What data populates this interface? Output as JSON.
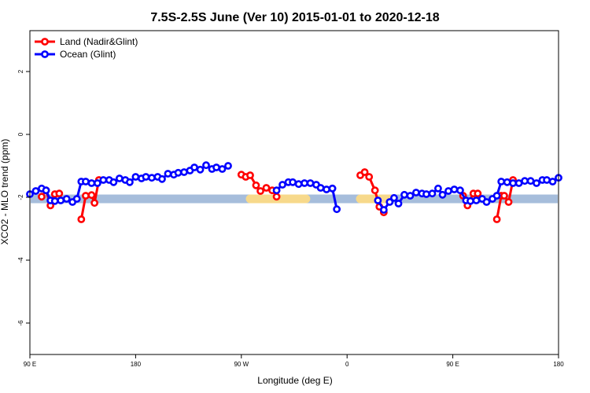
{
  "chart_data": {
    "type": "line",
    "title": "7.5S-2.5S June (Ver 10)   2015-01-01 to 2020-12-18",
    "xlabel": "Longitude (deg E)",
    "ylabel": "XCO2 - MLO trend (ppm)",
    "xlim": [
      90,
      450
    ],
    "ylim": [
      -7.0,
      3.3
    ],
    "x_ticks": [
      {
        "value": 90,
        "label": "90 E"
      },
      {
        "value": 162,
        "label": "180"
      },
      {
        "value": 234,
        "label": "90 W"
      },
      {
        "value": 306,
        "label": "0"
      },
      {
        "value": 378,
        "label": "90 E"
      },
      {
        "value": 450,
        "label": "180"
      }
    ],
    "y_ticks": [
      {
        "value": 2,
        "label": "2"
      },
      {
        "value": 0,
        "label": "0"
      },
      {
        "value": -2,
        "label": "-2"
      },
      {
        "value": -4,
        "label": "-4"
      },
      {
        "value": -6,
        "label": "-6"
      }
    ],
    "legend": {
      "position": "top-left"
    },
    "band": {
      "y": -2.05,
      "color": "#a6bddb",
      "land_color": "#f7d98b"
    },
    "land_bands": [
      [
        240,
        278
      ],
      [
        315,
        335
      ]
    ],
    "series": [
      {
        "name": "Land (Nadir&Glint)",
        "color": "#ff0000",
        "segments": [
          [
            [
              98,
              -1.98
            ],
            [
              101,
              -1.78
            ],
            [
              104,
              -2.26
            ],
            [
              107,
              -1.9
            ],
            [
              110,
              -1.88
            ]
          ],
          [
            [
              125,
              -2.7
            ],
            [
              128,
              -1.95
            ],
            [
              132,
              -1.93
            ],
            [
              134,
              -2.18
            ],
            [
              137,
              -1.45
            ]
          ],
          [
            [
              234,
              -1.28
            ],
            [
              237,
              -1.35
            ],
            [
              240,
              -1.3
            ],
            [
              244,
              -1.62
            ],
            [
              247,
              -1.8
            ],
            [
              251,
              -1.7
            ],
            [
              255,
              -1.78
            ],
            [
              258,
              -1.98
            ]
          ],
          [
            [
              315,
              -1.3
            ],
            [
              318,
              -1.2
            ],
            [
              321,
              -1.35
            ],
            [
              325,
              -1.78
            ],
            [
              328,
              -2.3
            ],
            [
              331,
              -2.48
            ]
          ],
          [
            [
              385,
              -1.95
            ],
            [
              388,
              -2.26
            ],
            [
              392,
              -1.88
            ],
            [
              395,
              -1.88
            ]
          ],
          [
            [
              408,
              -2.7
            ],
            [
              411,
              -1.95
            ],
            [
              413,
              -1.95
            ],
            [
              416,
              -2.15
            ],
            [
              419,
              -1.45
            ]
          ]
        ]
      },
      {
        "name": "Ocean (Glint)",
        "color": "#0000ff",
        "segments": [
          [
            [
              90,
              -1.9
            ],
            [
              94,
              -1.8
            ],
            [
              98,
              -1.72
            ],
            [
              101,
              -1.78
            ],
            [
              104,
              -2.1
            ],
            [
              107,
              -2.12
            ],
            [
              111,
              -2.1
            ],
            [
              115,
              -2.05
            ],
            [
              119,
              -2.15
            ],
            [
              122,
              -2.05
            ],
            [
              125,
              -1.5
            ],
            [
              128,
              -1.5
            ],
            [
              132,
              -1.55
            ],
            [
              136,
              -1.55
            ],
            [
              140,
              -1.45
            ],
            [
              144,
              -1.45
            ],
            [
              147,
              -1.52
            ],
            [
              151,
              -1.4
            ],
            [
              155,
              -1.45
            ],
            [
              158,
              -1.52
            ],
            [
              162,
              -1.35
            ],
            [
              166,
              -1.4
            ],
            [
              169,
              -1.35
            ],
            [
              173,
              -1.38
            ],
            [
              177,
              -1.35
            ],
            [
              180,
              -1.42
            ],
            [
              184,
              -1.25
            ],
            [
              188,
              -1.28
            ],
            [
              191,
              -1.22
            ],
            [
              195,
              -1.2
            ],
            [
              199,
              -1.15
            ],
            [
              202,
              -1.05
            ],
            [
              206,
              -1.12
            ],
            [
              210,
              -0.98
            ],
            [
              214,
              -1.1
            ],
            [
              217,
              -1.05
            ],
            [
              221,
              -1.1
            ],
            [
              225,
              -1.0
            ]
          ],
          [
            [
              258,
              -1.78
            ],
            [
              262,
              -1.6
            ],
            [
              266,
              -1.52
            ],
            [
              269,
              -1.52
            ],
            [
              273,
              -1.58
            ],
            [
              277,
              -1.55
            ],
            [
              281,
              -1.55
            ],
            [
              285,
              -1.6
            ],
            [
              288,
              -1.7
            ],
            [
              292,
              -1.75
            ],
            [
              296,
              -1.72
            ]
          ],
          [
            [
              296,
              -1.72
            ],
            [
              299,
              -2.38
            ]
          ],
          [
            [
              327,
              -2.1
            ],
            [
              331,
              -2.4
            ],
            [
              335,
              -2.15
            ],
            [
              338,
              -2.02
            ],
            [
              341,
              -2.2
            ],
            [
              345,
              -1.92
            ],
            [
              349,
              -1.95
            ],
            [
              353,
              -1.85
            ],
            [
              357,
              -1.88
            ],
            [
              360,
              -1.9
            ],
            [
              364,
              -1.88
            ],
            [
              368,
              -1.72
            ],
            [
              371,
              -1.92
            ],
            [
              375,
              -1.8
            ],
            [
              379,
              -1.75
            ],
            [
              383,
              -1.78
            ],
            [
              387,
              -2.1
            ],
            [
              390,
              -2.12
            ],
            [
              394,
              -2.1
            ],
            [
              398,
              -2.05
            ],
            [
              401,
              -2.15
            ],
            [
              405,
              -2.05
            ],
            [
              408,
              -1.95
            ],
            [
              411,
              -1.5
            ],
            [
              415,
              -1.52
            ],
            [
              419,
              -1.55
            ],
            [
              423,
              -1.55
            ],
            [
              427,
              -1.48
            ],
            [
              431,
              -1.48
            ],
            [
              435,
              -1.55
            ],
            [
              439,
              -1.45
            ],
            [
              442,
              -1.45
            ],
            [
              446,
              -1.5
            ],
            [
              450,
              -1.38
            ]
          ]
        ]
      }
    ]
  }
}
